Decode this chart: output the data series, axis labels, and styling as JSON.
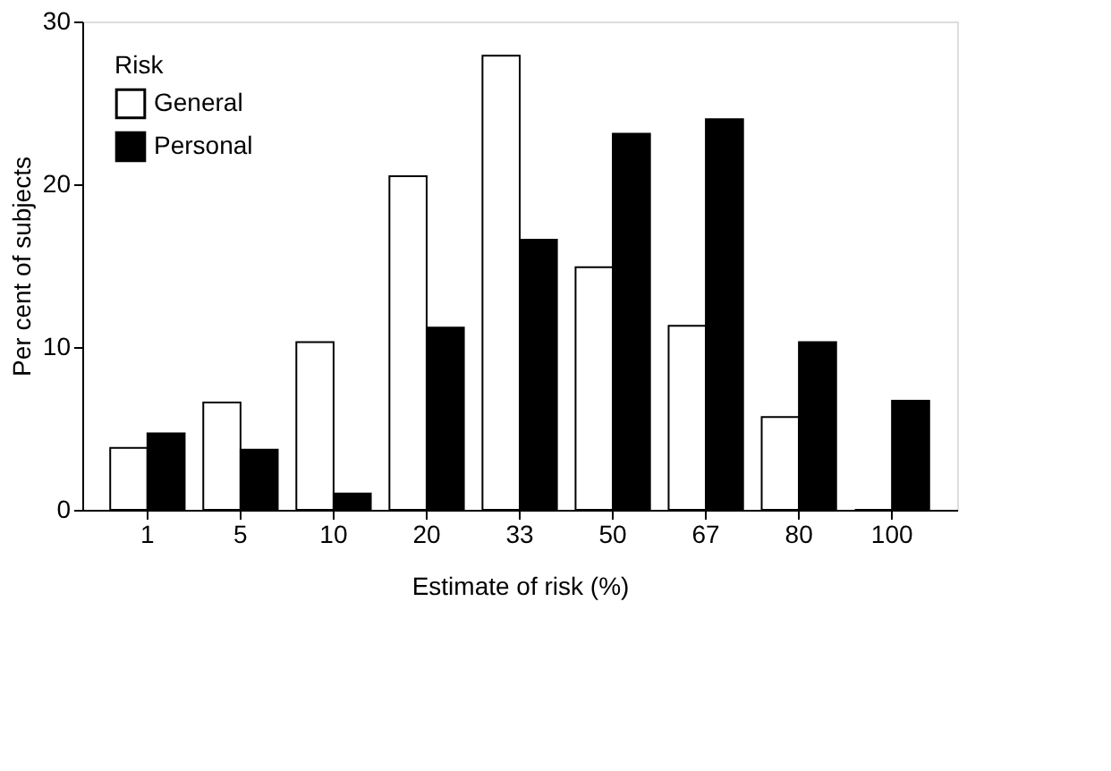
{
  "chart_data": {
    "type": "bar",
    "xlabel": "Estimate of risk (%)",
    "ylabel": "Per cent of subjects",
    "legend_title": "Risk",
    "categories": [
      "1",
      "5",
      "10",
      "20",
      "33",
      "50",
      "67",
      "80",
      "100"
    ],
    "series": [
      {
        "name": "General",
        "color": "#ffffff",
        "values": [
          3.8,
          6.6,
          10.3,
          20.5,
          27.9,
          14.9,
          11.3,
          5.7,
          0
        ]
      },
      {
        "name": "Personal",
        "color": "#000000",
        "values": [
          4.7,
          3.7,
          1.0,
          11.2,
          16.6,
          23.1,
          24.0,
          10.3,
          6.7
        ]
      }
    ],
    "ylim": [
      0,
      30
    ],
    "yticks": [
      0,
      10,
      20,
      30
    ],
    "grid": false,
    "legend": "top left"
  }
}
